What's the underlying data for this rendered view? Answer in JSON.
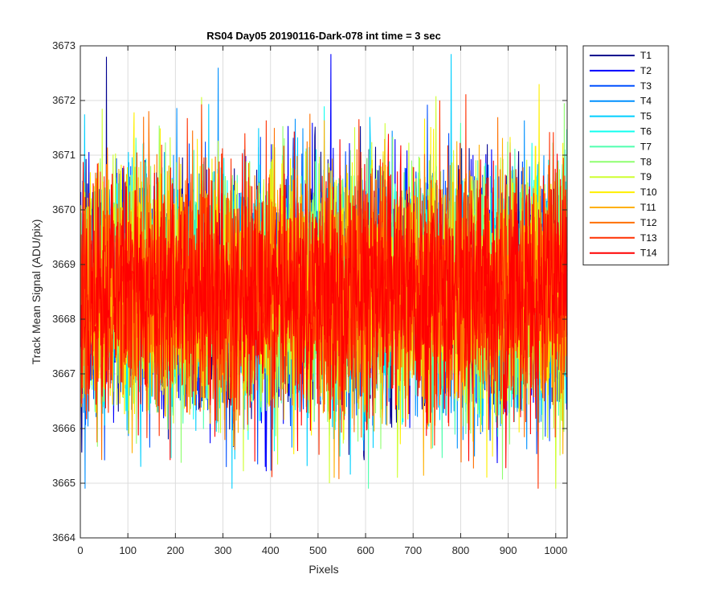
{
  "chart_data": {
    "type": "line",
    "title": "RS04 Day05 20190116-Dark-078 int time = 3 sec",
    "xlabel": "Pixels",
    "ylabel": "Track Mean Signal (ADU/pix)",
    "xlim": [
      0,
      1024
    ],
    "ylim": [
      3664,
      3673
    ],
    "xticks": [
      0,
      100,
      200,
      300,
      400,
      500,
      600,
      700,
      800,
      900,
      1000
    ],
    "yticks": [
      3664,
      3665,
      3666,
      3667,
      3668,
      3669,
      3670,
      3671,
      3672,
      3673
    ],
    "grid": true,
    "legend_position": "outside-top-right",
    "x": {
      "start": 1,
      "end": 1024,
      "step": 1
    },
    "series_summary": {
      "mean": 3668.5,
      "typical_noise_std": 1.1,
      "observed_min": 3664.9,
      "observed_max": 3672.9
    },
    "series": [
      {
        "name": "T1",
        "color": "#00008F"
      },
      {
        "name": "T2",
        "color": "#0000FF"
      },
      {
        "name": "T3",
        "color": "#0050FF"
      },
      {
        "name": "T4",
        "color": "#0090FF"
      },
      {
        "name": "T5",
        "color": "#00CFFF"
      },
      {
        "name": "T6",
        "color": "#10FFEF"
      },
      {
        "name": "T7",
        "color": "#50FFAF"
      },
      {
        "name": "T8",
        "color": "#8FFF70"
      },
      {
        "name": "T9",
        "color": "#CFFF30"
      },
      {
        "name": "T10",
        "color": "#FFEF00"
      },
      {
        "name": "T11",
        "color": "#FFB000"
      },
      {
        "name": "T12",
        "color": "#FF7000"
      },
      {
        "name": "T13",
        "color": "#FF3000"
      },
      {
        "name": "T14",
        "color": "#FF0000"
      }
    ],
    "notable_spikes": [
      {
        "series": "T1",
        "x": 55,
        "y": 3672.8
      },
      {
        "series": "T2",
        "x": 527,
        "y": 3672.85
      },
      {
        "series": "T4",
        "x": 290,
        "y": 3672.6
      },
      {
        "series": "T5",
        "x": 780,
        "y": 3672.85
      },
      {
        "series": "T10",
        "x": 965,
        "y": 3672.3
      },
      {
        "series": "T5",
        "x": 127,
        "y": 3665.3
      },
      {
        "series": "T9",
        "x": 667,
        "y": 3665.1
      },
      {
        "series": "T13",
        "x": 963,
        "y": 3664.9
      }
    ]
  }
}
